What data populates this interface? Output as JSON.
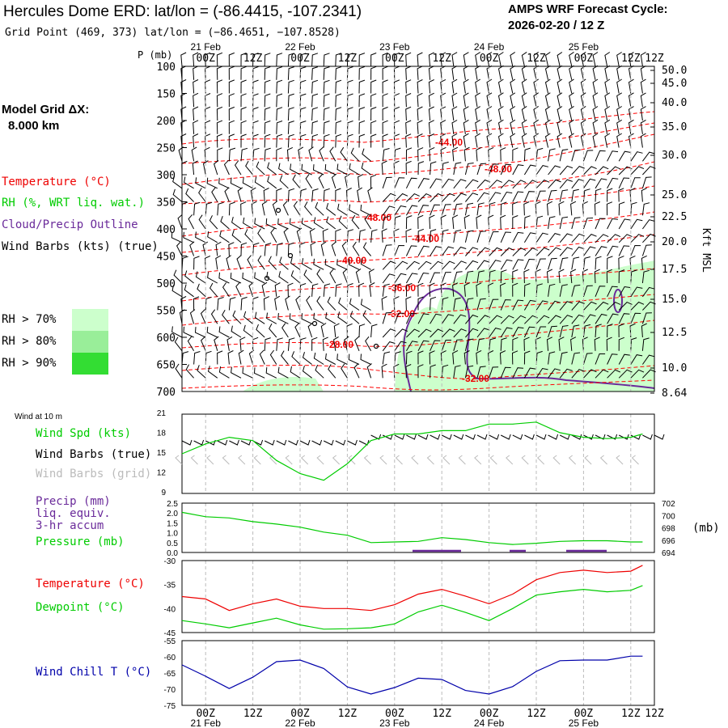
{
  "header": {
    "title": "Hercules Dome ERD:  lat/lon = (-86.4415, -107.2341)",
    "grid_point": "Grid Point (469, 373) lat/lon = (−86.4651, −107.8528)",
    "cycle_label": "AMPS WRF Forecast Cycle:",
    "cycle_value": "2026-02-20 / 12  Z"
  },
  "left_labels": {
    "model_grid": "Model Grid ΔX:",
    "model_grid_value": "8.000 km",
    "temperature": "Temperature (°C)",
    "rh": "RH (%, WRT liq. wat.)",
    "cloud": "Cloud/Precip Outline",
    "wind_barbs": "Wind Barbs (kts) (true)",
    "rh70": "RH > 70%",
    "rh80": "RH > 80%",
    "rh90": "RH > 90%",
    "wind10": "Wind at 10 m",
    "wind_spd": "Wind Spd (kts)",
    "barbs_true": "Wind Barbs (true)",
    "barbs_grid": "Wind Barbs (grid)",
    "precip": "Precip (mm)",
    "liq": "liq. equiv.",
    "accum": "3-hr accum",
    "pressure": "Pressure (mb)",
    "pressure_unit": "(mb)",
    "temp2": "Temperature (°C)",
    "dewpoint": "Dewpoint (°C)",
    "windchill": "Wind Chill T (°C)",
    "kft": "Kft MSL",
    "p_mb": "P (mb)"
  },
  "colors": {
    "temperature": "#ff0000",
    "rh": "#00cc00",
    "cloud": "#6a2a9a",
    "rh70": "#ccffcc",
    "rh80": "#99ee99",
    "rh90": "#33dd33",
    "windchill": "#0000aa",
    "barb_grid": "#bbbbbb"
  },
  "chart_data": {
    "time_axis": {
      "hours": [
        0,
        12,
        24,
        36,
        48,
        60,
        72,
        84,
        96,
        108,
        120
      ],
      "top_time_labels": [
        "00Z",
        "12Z",
        "00Z",
        "12Z",
        "00Z",
        "12Z",
        "00Z",
        "12Z",
        "00Z",
        "12Z"
      ],
      "top_day_labels": [
        "21 Feb",
        "22 Feb",
        "23 Feb",
        "24 Feb",
        "25 Feb"
      ],
      "top_extra_label": "12Z",
      "bottom_time_labels": [
        "00Z",
        "12Z",
        "00Z",
        "12Z",
        "00Z",
        "12Z",
        "00Z",
        "12Z",
        "00Z",
        "12Z"
      ],
      "bottom_day_labels": [
        "21 Feb",
        "22 Feb",
        "23 Feb",
        "24 Feb",
        "25 Feb"
      ]
    },
    "cross_section": {
      "type": "contour",
      "pressure_levels": [
        "100",
        "150",
        "200",
        "250",
        "300",
        "350",
        "400",
        "450",
        "500",
        "550",
        "600",
        "650",
        "700"
      ],
      "height_kft": [
        "50.0",
        "45.0",
        "40.0",
        "35.0",
        "30.0",
        "25.0",
        "22.5",
        "20.0",
        "17.5",
        "15.0",
        "12.5",
        "10.0",
        "8.64"
      ],
      "temperature_labels": [
        "-44.00",
        "-48.00",
        "-48.00",
        "-44.00",
        "-40.00",
        "-36.00",
        "-32.00",
        "-28.00",
        "-32.00"
      ]
    },
    "wind10m": {
      "type": "line",
      "ylim": [
        9,
        21
      ],
      "yticks": [
        "21",
        "18",
        "15",
        "12",
        "9"
      ],
      "series": [
        {
          "name": "Wind Spd (kts)",
          "x": [
            0,
            6,
            12,
            18,
            24,
            30,
            36,
            42,
            48,
            54,
            60,
            66,
            72,
            78,
            84,
            90,
            96,
            102,
            108,
            114,
            117
          ],
          "values": [
            15,
            16.5,
            17.5,
            17,
            14,
            12,
            11,
            13.5,
            17,
            18,
            18,
            18.5,
            18.5,
            19.5,
            19.5,
            19.8,
            18.2,
            17.5,
            17.3,
            17.5,
            18
          ]
        }
      ]
    },
    "pressure": {
      "type": "line",
      "ylim": [
        694,
        702
      ],
      "precip_ticks": [
        "2.5",
        "2.0",
        "1.5",
        "1.0",
        "0.5",
        "0.0"
      ],
      "pressure_ticks": [
        "702",
        "700",
        "698",
        "696",
        "694"
      ],
      "series": [
        {
          "name": "Pressure (mb)",
          "x": [
            0,
            6,
            12,
            18,
            24,
            30,
            36,
            42,
            48,
            54,
            60,
            66,
            72,
            78,
            84,
            90,
            96,
            102,
            108,
            114,
            117
          ],
          "values": [
            700.5,
            699.8,
            699.6,
            699,
            698.6,
            698.1,
            697.3,
            696.8,
            695.6,
            695.7,
            695.8,
            696.4,
            696.1,
            695.6,
            695.3,
            695.5,
            695.8,
            695.9,
            695.9,
            695.7,
            695.7
          ]
        }
      ]
    },
    "temp_dew": {
      "type": "line",
      "ylim": [
        -45,
        -30
      ],
      "yticks": [
        "-30",
        "-35",
        "-40",
        "-45"
      ],
      "series": [
        {
          "name": "Temperature (°C)",
          "x": [
            0,
            6,
            12,
            18,
            24,
            30,
            36,
            42,
            48,
            54,
            60,
            66,
            72,
            78,
            84,
            90,
            96,
            102,
            108,
            114,
            117
          ],
          "values": [
            -37.5,
            -38,
            -40.4,
            -39,
            -38,
            -39.5,
            -40,
            -40,
            -40.4,
            -39.2,
            -37,
            -36,
            -37.4,
            -39,
            -37,
            -34,
            -32.5,
            -32,
            -32.5,
            -32.2,
            -31
          ]
        },
        {
          "name": "Dewpoint (°C)",
          "x": [
            0,
            6,
            12,
            18,
            24,
            30,
            36,
            42,
            48,
            54,
            60,
            66,
            72,
            78,
            84,
            90,
            96,
            102,
            108,
            114,
            117
          ],
          "values": [
            -42.5,
            -43.2,
            -44,
            -43,
            -42,
            -43.4,
            -44.3,
            -44.2,
            -44,
            -43.2,
            -40.7,
            -39.3,
            -40.8,
            -42.5,
            -40,
            -37.2,
            -36.5,
            -36,
            -36.5,
            -36.2,
            -35.2
          ]
        }
      ]
    },
    "windchill": {
      "type": "line",
      "ylim": [
        -75,
        -55
      ],
      "yticks": [
        "-55",
        "-60",
        "-65",
        "-70",
        "-75"
      ],
      "series": [
        {
          "name": "Wind Chill T (°C)",
          "x": [
            0,
            6,
            12,
            18,
            24,
            30,
            36,
            42,
            48,
            54,
            60,
            66,
            72,
            78,
            84,
            90,
            96,
            102,
            108,
            114,
            117
          ],
          "values": [
            -62.5,
            -66,
            -69.8,
            -66.3,
            -61.5,
            -61,
            -63.6,
            -69.3,
            -71.5,
            -69.5,
            -66.6,
            -67,
            -70.4,
            -71.5,
            -69.2,
            -64.5,
            -61.2,
            -61,
            -61,
            -59.8,
            -59.8
          ]
        }
      ]
    }
  }
}
